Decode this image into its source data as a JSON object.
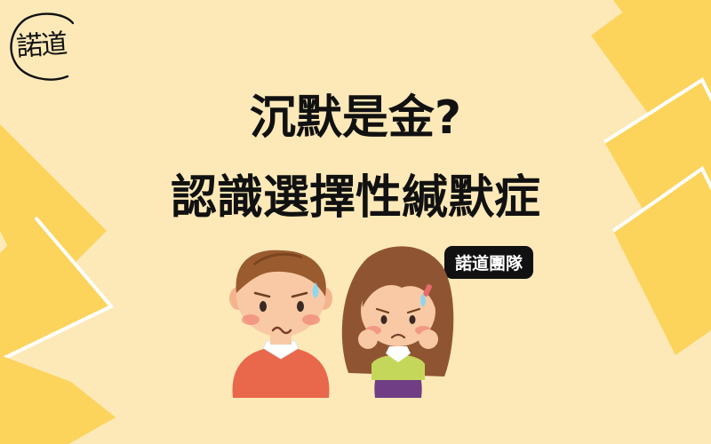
{
  "logo": {
    "text": "諾道"
  },
  "title": {
    "line1": "沉默是金?",
    "line2": "認識選擇性緘默症"
  },
  "badge": {
    "label": "諾道團隊"
  },
  "colors": {
    "background": "#fde9b8",
    "diamond": "#fcd45c",
    "diamond_outline": "#ffffff",
    "title_text": "#111111",
    "badge_bg": "#111111",
    "badge_text": "#ffffff"
  }
}
